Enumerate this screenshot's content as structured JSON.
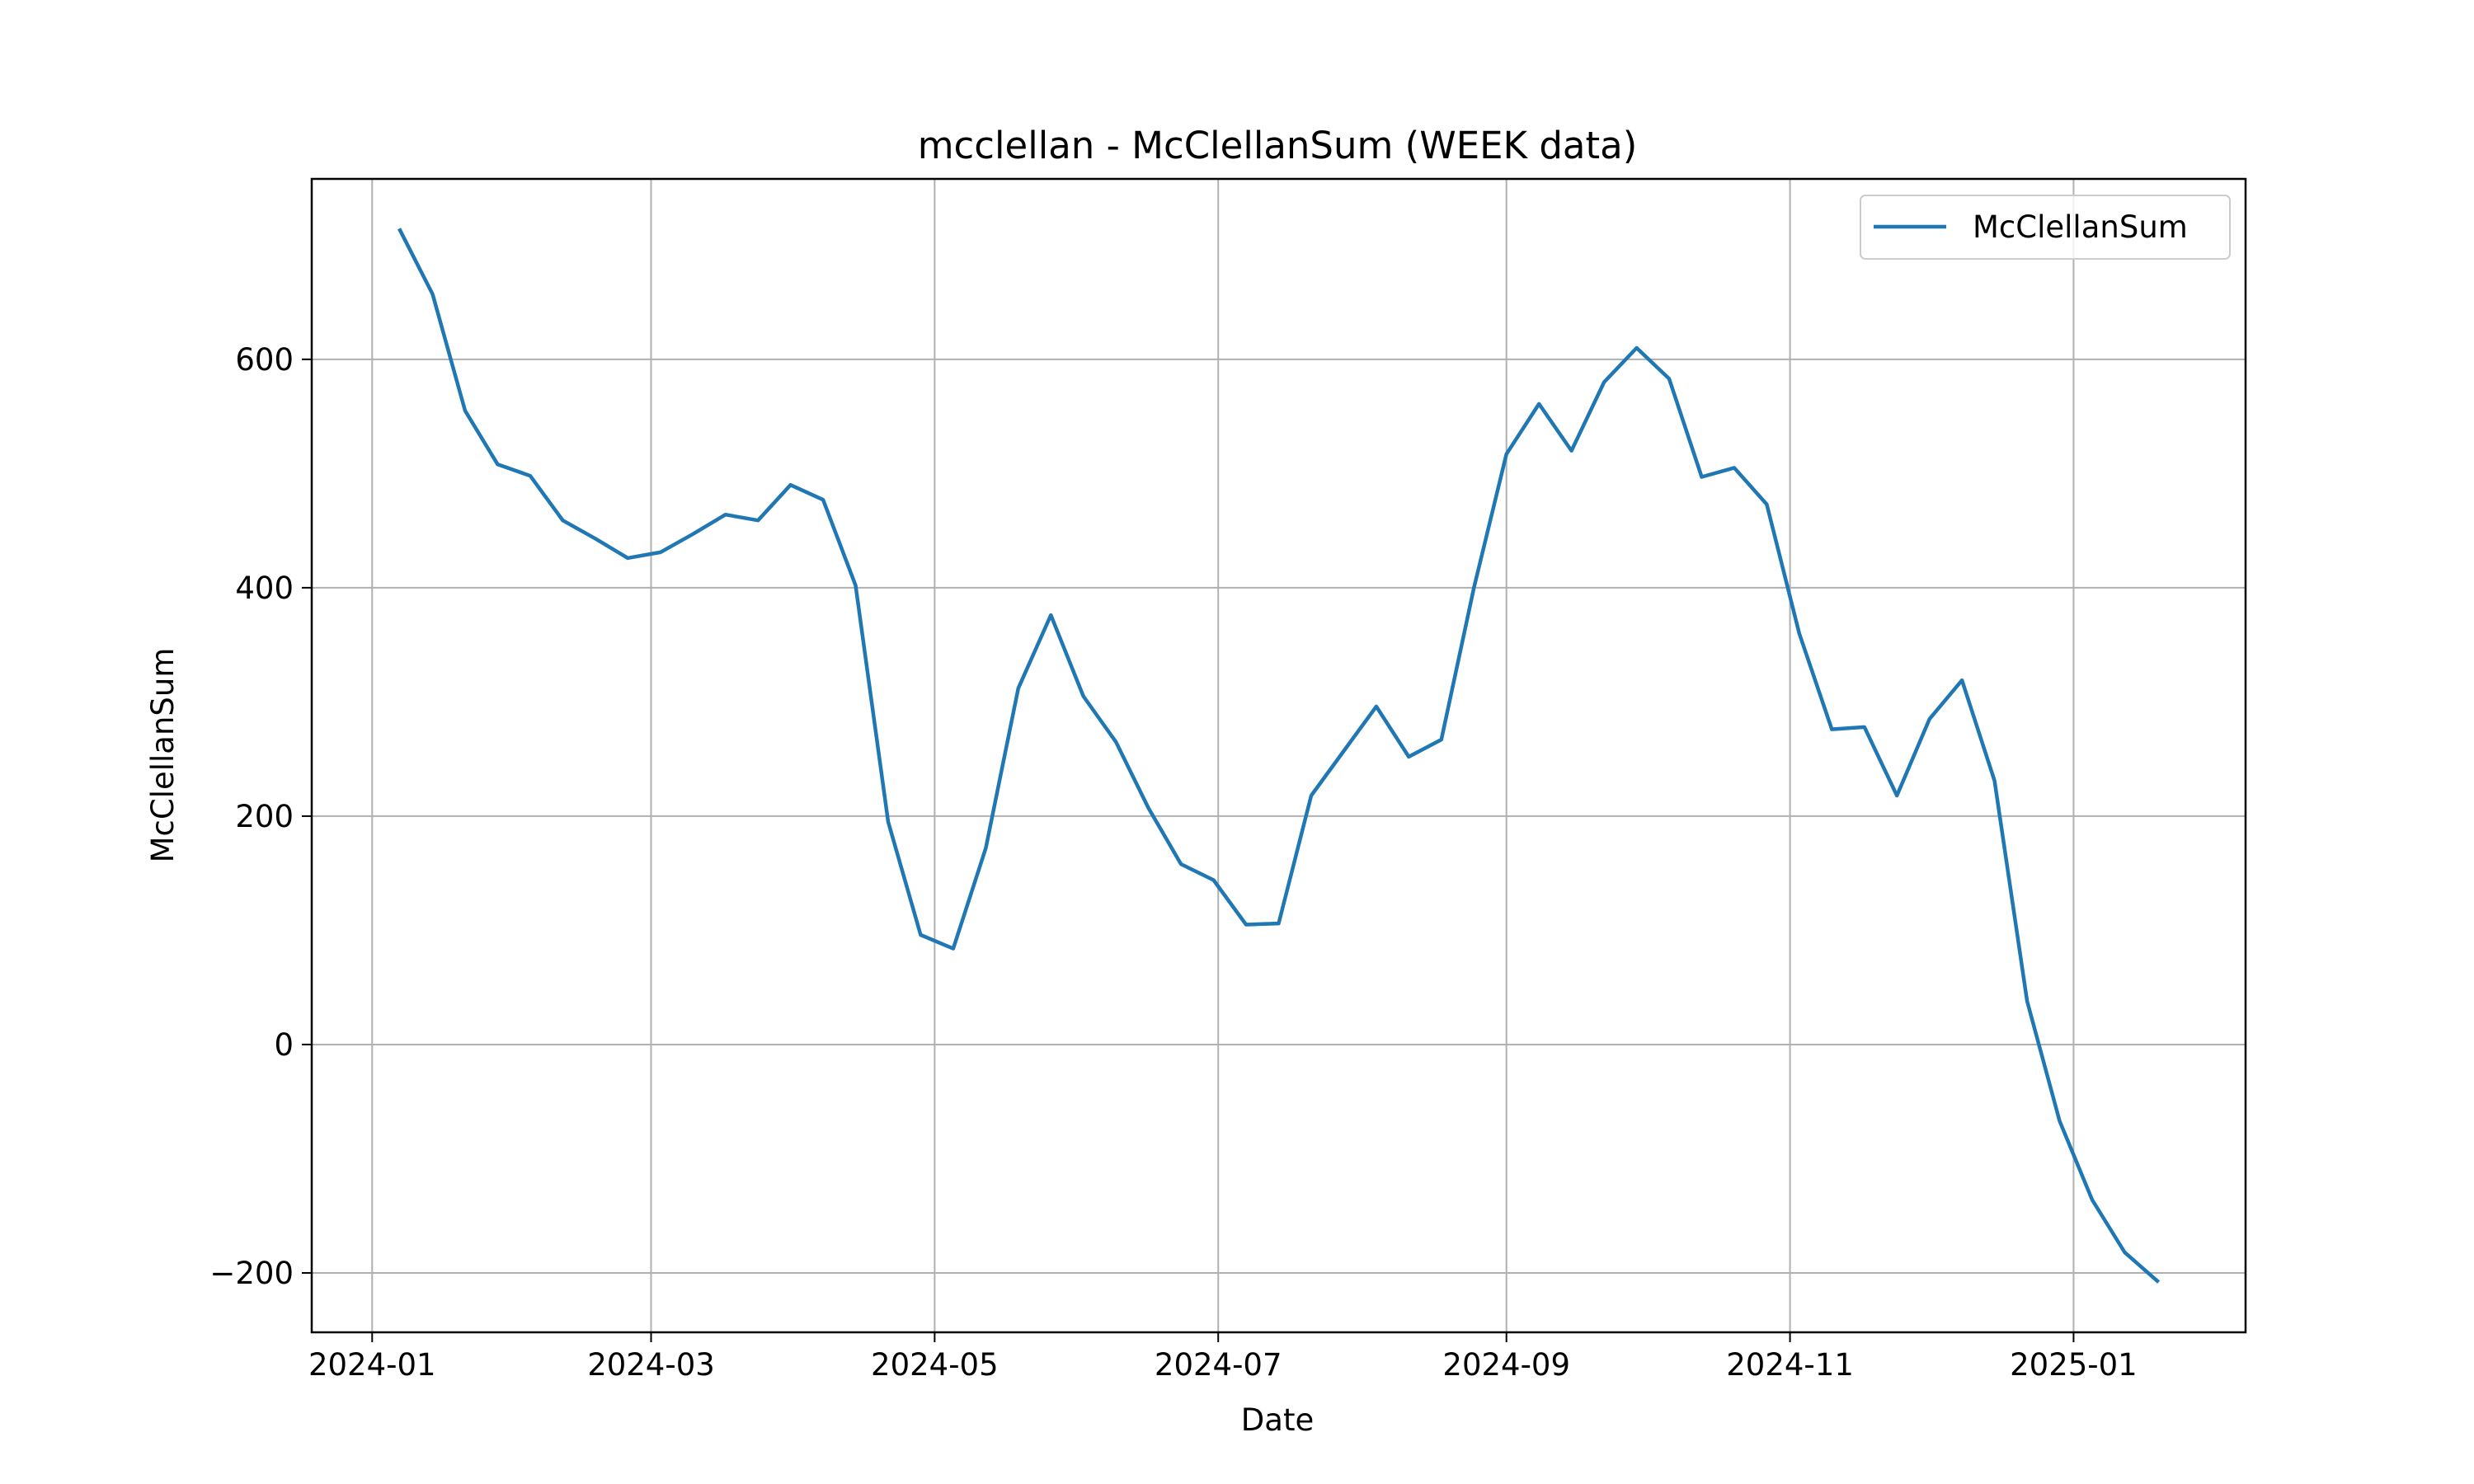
{
  "chart_data": {
    "type": "line",
    "title": "mcclellan - McClellanSum (WEEK data)",
    "xlabel": "Date",
    "ylabel": "McClellanSum",
    "x_axis_type": "date",
    "xlim": [
      "2023-12-19",
      "2025-02-07"
    ],
    "ylim": [
      -252,
      758
    ],
    "x_ticks": [
      {
        "value": "2024-01-01",
        "label": "2024-01"
      },
      {
        "value": "2024-03-01",
        "label": "2024-03"
      },
      {
        "value": "2024-05-01",
        "label": "2024-05"
      },
      {
        "value": "2024-07-01",
        "label": "2024-07"
      },
      {
        "value": "2024-09-01",
        "label": "2024-09"
      },
      {
        "value": "2024-11-01",
        "label": "2024-11"
      },
      {
        "value": "2025-01-01",
        "label": "2025-01"
      }
    ],
    "y_ticks": [
      {
        "value": -200,
        "label": "−200"
      },
      {
        "value": 0,
        "label": "0"
      },
      {
        "value": 200,
        "label": "200"
      },
      {
        "value": 400,
        "label": "400"
      },
      {
        "value": 600,
        "label": "600"
      }
    ],
    "grid": true,
    "legend_position": "top-right",
    "series": [
      {
        "name": "McClellanSum",
        "color": "#1f77b4",
        "x": [
          "2024-01-07",
          "2024-01-14",
          "2024-01-21",
          "2024-01-28",
          "2024-02-04",
          "2024-02-11",
          "2024-02-18",
          "2024-02-25",
          "2024-03-03",
          "2024-03-10",
          "2024-03-17",
          "2024-03-24",
          "2024-03-31",
          "2024-04-07",
          "2024-04-14",
          "2024-04-21",
          "2024-04-28",
          "2024-05-05",
          "2024-05-12",
          "2024-05-19",
          "2024-05-26",
          "2024-06-02",
          "2024-06-09",
          "2024-06-16",
          "2024-06-23",
          "2024-06-30",
          "2024-07-07",
          "2024-07-14",
          "2024-07-21",
          "2024-07-28",
          "2024-08-04",
          "2024-08-11",
          "2024-08-18",
          "2024-08-25",
          "2024-09-01",
          "2024-09-08",
          "2024-09-15",
          "2024-09-22",
          "2024-09-29",
          "2024-10-06",
          "2024-10-13",
          "2024-10-20",
          "2024-10-27",
          "2024-11-03",
          "2024-11-10",
          "2024-11-17",
          "2024-11-24",
          "2024-12-01",
          "2024-12-08",
          "2024-12-15",
          "2024-12-22",
          "2024-12-29",
          "2025-01-05",
          "2025-01-12",
          "2025-01-19"
        ],
        "y": [
          713,
          657,
          555,
          508,
          498,
          459,
          443,
          426,
          431,
          447,
          464,
          459,
          490,
          477,
          402,
          195,
          96,
          84,
          172,
          312,
          376,
          305,
          265,
          207,
          158,
          144,
          105,
          106,
          218,
          257,
          296,
          252,
          267,
          400,
          517,
          561,
          520,
          580,
          610,
          583,
          497,
          505,
          473,
          360,
          276,
          278,
          218,
          285,
          319,
          231,
          38,
          -67,
          -136,
          -182,
          -207
        ]
      }
    ]
  }
}
